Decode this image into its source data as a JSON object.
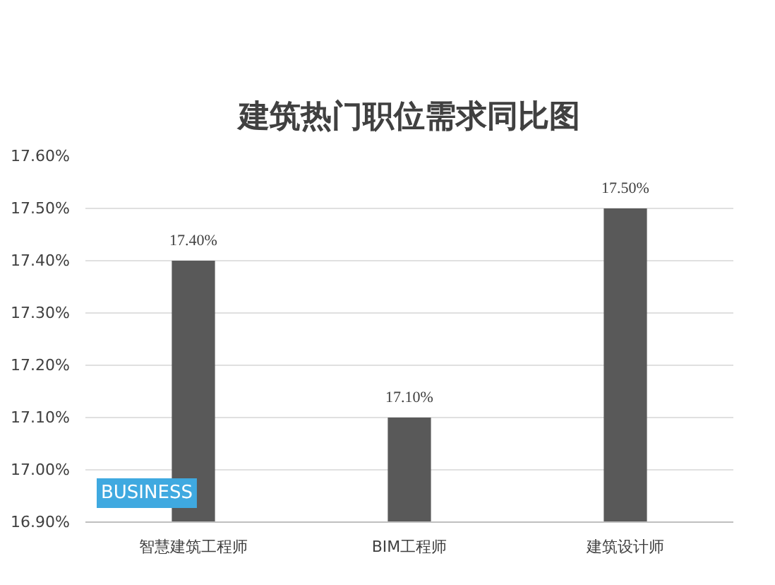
{
  "chart_data": {
    "type": "bar",
    "title": "建筑热门职位需求同比图",
    "categories": [
      "智慧建筑工程师",
      "BIM工程师",
      "建筑设计师"
    ],
    "values": [
      17.4,
      17.1,
      17.5
    ],
    "color": "#595959",
    "value_labels": [
      "17.40%",
      "17.10%",
      "17.50%"
    ],
    "ylim": [
      16.9,
      17.6
    ],
    "yticks": [
      {
        "value": 16.9,
        "label": "16.90%"
      },
      {
        "value": 17.0,
        "label": "17.00%"
      },
      {
        "value": 17.1,
        "label": "17.10%"
      },
      {
        "value": 17.2,
        "label": "17.20%"
      },
      {
        "value": 17.3,
        "label": "17.30%"
      },
      {
        "value": 17.4,
        "label": "17.40%"
      },
      {
        "value": 17.5,
        "label": "17.50%"
      },
      {
        "value": 17.6,
        "label": "17.60%"
      }
    ],
    "grid": "y",
    "legend": false,
    "annotations": [
      "BUSINESS"
    ]
  }
}
